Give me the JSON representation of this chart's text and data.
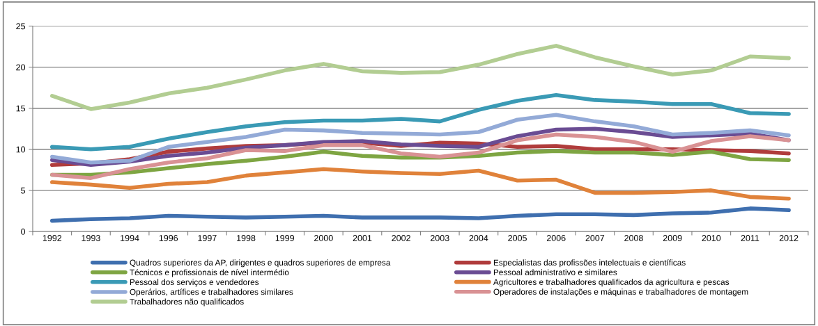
{
  "chart_data": {
    "type": "line",
    "categories": [
      "1992",
      "1993",
      "1994",
      "1996",
      "1997",
      "1998",
      "1999",
      "2000",
      "2001",
      "2002",
      "2003",
      "2004",
      "2005",
      "2006",
      "2007",
      "2008",
      "2009",
      "2010",
      "2011",
      "2012"
    ],
    "ylim": [
      0,
      25
    ],
    "yticks": [
      0,
      5,
      10,
      15,
      20,
      25
    ],
    "grid": "y",
    "legend": "bottom",
    "marker": "none",
    "line_style": "solid",
    "series": [
      {
        "name": "Quadros superiores da AP, dirigentes e quadros superiores de empresa",
        "color": "#3f6faf",
        "values": [
          1.3,
          1.5,
          1.6,
          1.9,
          1.8,
          1.7,
          1.8,
          1.9,
          1.7,
          1.7,
          1.7,
          1.6,
          1.9,
          2.1,
          2.1,
          2.0,
          2.2,
          2.3,
          2.8,
          2.6
        ]
      },
      {
        "name": "Especialistas das profissões intelectuais e científicas",
        "color": "#b03c3c",
        "values": [
          8.1,
          8.3,
          8.8,
          9.7,
          10.1,
          10.4,
          10.5,
          10.8,
          10.8,
          10.4,
          10.8,
          10.7,
          10.3,
          10.4,
          10.0,
          10.0,
          10.0,
          9.9,
          9.8,
          9.5
        ]
      },
      {
        "name": "Técnicos e profissionais de nível intermédio",
        "color": "#7ea542",
        "values": [
          6.9,
          6.9,
          7.2,
          7.7,
          8.2,
          8.6,
          9.1,
          9.7,
          9.2,
          9.0,
          9.0,
          9.2,
          9.6,
          9.8,
          9.6,
          9.6,
          9.3,
          9.7,
          8.8,
          8.7
        ]
      },
      {
        "name": "Pessoal administrativo e similares",
        "color": "#6a4c93",
        "values": [
          8.7,
          8.1,
          8.5,
          9.2,
          9.6,
          10.2,
          10.5,
          10.9,
          11.0,
          10.6,
          10.4,
          10.3,
          11.6,
          12.4,
          12.5,
          12.1,
          11.5,
          11.7,
          11.9,
          11.1
        ]
      },
      {
        "name": "Pessoal dos serviços e vendedores",
        "color": "#3a9ab5",
        "values": [
          10.3,
          10.0,
          10.3,
          11.3,
          12.1,
          12.8,
          13.3,
          13.5,
          13.5,
          13.7,
          13.4,
          14.8,
          15.9,
          16.6,
          16.0,
          15.8,
          15.5,
          15.5,
          14.4,
          14.3
        ]
      },
      {
        "name": "Agricultores e trabalhadores qualificados da agricultura e pescas",
        "color": "#e0823a",
        "values": [
          6.0,
          5.7,
          5.3,
          5.8,
          6.0,
          6.8,
          7.2,
          7.6,
          7.3,
          7.1,
          7.0,
          7.4,
          6.2,
          6.3,
          4.7,
          4.7,
          4.8,
          5.0,
          4.2,
          4.0
        ]
      },
      {
        "name": "Operários, artífices e trabalhadores similares",
        "color": "#93aad7",
        "values": [
          9.1,
          8.4,
          8.6,
          10.3,
          10.9,
          11.5,
          12.4,
          12.3,
          12.0,
          11.9,
          11.8,
          12.1,
          13.6,
          14.2,
          13.4,
          12.8,
          11.8,
          12.0,
          12.3,
          11.7
        ]
      },
      {
        "name": "Operadores de instalações e máquinas e trabalhadores de montagem",
        "color": "#d99294",
        "values": [
          6.9,
          6.5,
          7.6,
          8.4,
          8.9,
          9.9,
          9.8,
          10.5,
          10.5,
          9.5,
          9.1,
          9.6,
          11.1,
          11.8,
          11.5,
          10.9,
          9.7,
          11.0,
          11.6,
          11.1
        ]
      },
      {
        "name": "Trabalhadores não qualificados",
        "color": "#b2cd92",
        "values": [
          16.5,
          14.9,
          15.7,
          16.8,
          17.5,
          18.5,
          19.6,
          20.4,
          19.5,
          19.3,
          19.4,
          20.3,
          21.6,
          22.6,
          21.2,
          20.1,
          19.1,
          19.6,
          21.3,
          21.1
        ]
      }
    ]
  }
}
